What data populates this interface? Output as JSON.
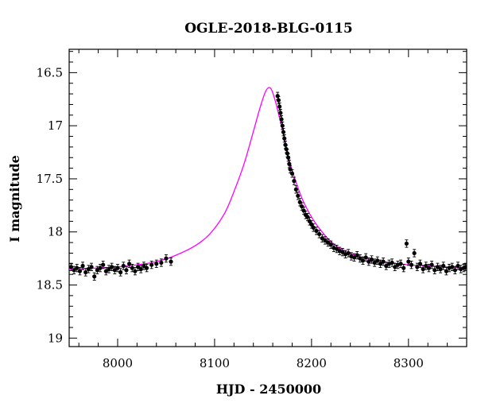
{
  "chart_data": {
    "type": "scatter",
    "title": "OGLE-2018-BLG-0115",
    "xlabel": "HJD - 2450000",
    "ylabel": "I magnitude",
    "xlim": [
      7950,
      8360
    ],
    "ylim": [
      19.08,
      16.28
    ],
    "y_inverted": true,
    "grid": false,
    "x_ticks": [
      {
        "value": 8000,
        "label": "8000"
      },
      {
        "value": 8100,
        "label": "8100"
      },
      {
        "value": 8200,
        "label": "8200"
      },
      {
        "value": 8300,
        "label": "8300"
      }
    ],
    "y_ticks": [
      {
        "value": 16.5,
        "label": "16.5"
      },
      {
        "value": 17,
        "label": "17"
      },
      {
        "value": 17.5,
        "label": "17.5"
      },
      {
        "value": 18,
        "label": "18"
      },
      {
        "value": 18.5,
        "label": "18.5"
      },
      {
        "value": 19,
        "label": "19"
      }
    ],
    "model": {
      "color": "#ff00ff",
      "x": [
        7950,
        7980,
        8000,
        8020,
        8040,
        8060,
        8080,
        8095,
        8110,
        8120,
        8130,
        8138,
        8145,
        8150,
        8153,
        8156,
        8158,
        8160,
        8163,
        8166,
        8170,
        8175,
        8180,
        8190,
        8200,
        8210,
        8220,
        8230,
        8245,
        8260,
        8280,
        8300,
        8320,
        8340,
        8360
      ],
      "y": [
        18.35,
        18.34,
        18.33,
        18.31,
        18.28,
        18.22,
        18.13,
        18.02,
        17.83,
        17.62,
        17.37,
        17.12,
        16.89,
        16.74,
        16.67,
        16.64,
        16.65,
        16.69,
        16.78,
        16.89,
        17.04,
        17.25,
        17.42,
        17.68,
        17.86,
        17.99,
        18.09,
        18.16,
        18.22,
        18.26,
        18.29,
        18.31,
        18.32,
        18.33,
        18.34
      ]
    },
    "series": [
      {
        "color": "#000000",
        "x": [
          7952,
          7955,
          7958,
          7961,
          7964,
          7967,
          7970,
          7973,
          7976,
          7979,
          7982,
          7985,
          7988,
          7991,
          7994,
          7997,
          8000,
          8003,
          8006,
          8009,
          8012,
          8015,
          8018,
          8021,
          8024,
          8027,
          8030,
          8035,
          8040,
          8045,
          8050,
          8055,
          8165,
          8166,
          8167,
          8168,
          8169,
          8170,
          8171,
          8172,
          8173,
          8174,
          8175,
          8176,
          8177,
          8178,
          8180,
          8182,
          8184,
          8186,
          8188,
          8190,
          8192,
          8194,
          8196,
          8198,
          8200,
          8202,
          8205,
          8208,
          8211,
          8214,
          8217,
          8220,
          8223,
          8226,
          8229,
          8232,
          8235,
          8238,
          8241,
          8244,
          8247,
          8250,
          8253,
          8256,
          8259,
          8262,
          8265,
          8268,
          8271,
          8274,
          8277,
          8280,
          8283,
          8286,
          8289,
          8292,
          8295,
          8298,
          8300,
          8303,
          8306,
          8309,
          8312,
          8315,
          8318,
          8321,
          8324,
          8327,
          8330,
          8333,
          8336,
          8339,
          8342,
          8345,
          8348,
          8351,
          8354,
          8357,
          8359
        ],
        "y": [
          18.33,
          18.36,
          18.34,
          18.37,
          18.32,
          18.38,
          18.35,
          18.33,
          18.42,
          18.36,
          18.34,
          18.31,
          18.37,
          18.35,
          18.33,
          18.36,
          18.34,
          18.38,
          18.32,
          18.36,
          18.3,
          18.34,
          18.37,
          18.33,
          18.35,
          18.32,
          18.34,
          18.31,
          18.3,
          18.29,
          18.25,
          18.28,
          16.72,
          16.76,
          16.82,
          16.88,
          16.94,
          17.0,
          17.06,
          17.12,
          17.18,
          17.22,
          17.26,
          17.3,
          17.36,
          17.41,
          17.45,
          17.52,
          17.6,
          17.66,
          17.72,
          17.76,
          17.8,
          17.84,
          17.86,
          17.9,
          17.93,
          17.96,
          17.99,
          18.02,
          18.06,
          18.08,
          18.1,
          18.12,
          18.15,
          18.16,
          18.18,
          18.19,
          18.21,
          18.2,
          18.23,
          18.24,
          18.22,
          18.25,
          18.27,
          18.24,
          18.28,
          18.26,
          18.29,
          18.27,
          18.3,
          18.28,
          18.32,
          18.3,
          18.29,
          18.33,
          18.31,
          18.3,
          18.34,
          18.11,
          18.28,
          18.31,
          18.2,
          18.33,
          18.3,
          18.35,
          18.32,
          18.34,
          18.31,
          18.36,
          18.33,
          18.35,
          18.32,
          18.37,
          18.34,
          18.33,
          18.36,
          18.32,
          18.35,
          18.34,
          18.33
        ],
        "error": 0.035
      }
    ]
  }
}
